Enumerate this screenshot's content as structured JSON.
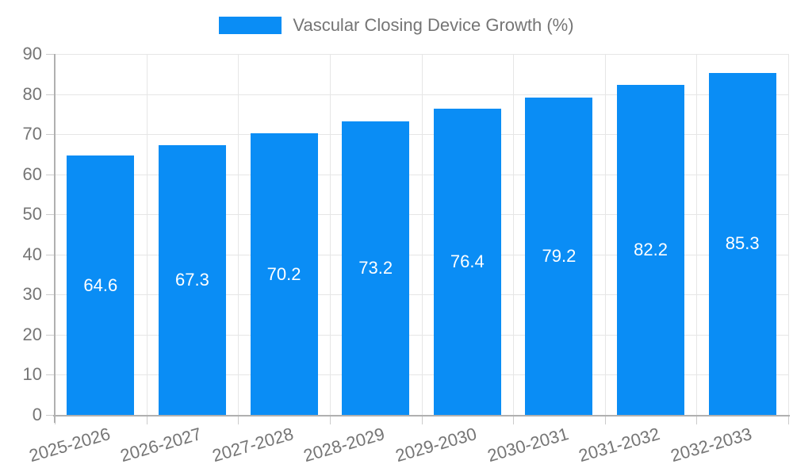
{
  "legend": {
    "label": "Vascular Closing Device Growth (%)"
  },
  "colors": {
    "bar": "#0a8df5",
    "grid": "#e6e6e6",
    "axis": "#b0b0b0",
    "tick": "#cccccc",
    "text": "#757575",
    "bar_label": "#ffffff",
    "background": "#ffffff"
  },
  "chart_data": {
    "type": "bar",
    "title": "",
    "legend_entries": [
      "Vascular Closing Device Growth (%)"
    ],
    "legend_position": "top-center",
    "categories": [
      "2025-2026",
      "2026-2027",
      "2027-2028",
      "2028-2029",
      "2029-2030",
      "2030-2031",
      "2031-2032",
      "2032-2033"
    ],
    "values": [
      64.6,
      67.3,
      70.2,
      73.2,
      76.4,
      79.2,
      82.2,
      85.3
    ],
    "value_labels": [
      "64.6",
      "67.3",
      "70.2",
      "73.2",
      "76.4",
      "79.2",
      "82.2",
      "85.3"
    ],
    "xlabel": "",
    "ylabel": "",
    "ylim": [
      0,
      90
    ],
    "y_tick_step": 10,
    "grid": true,
    "value_labels_inside_bars": true,
    "x_label_rotation_deg": -16
  }
}
